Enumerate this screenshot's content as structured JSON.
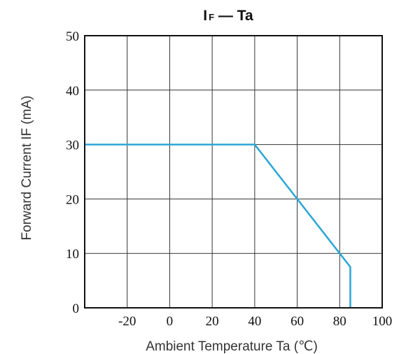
{
  "chart_data": {
    "type": "line",
    "title": {
      "main": "I",
      "subscript": "F",
      "rest": " — Ta"
    },
    "xlabel": "Ambient Temperature  Ta (℃)",
    "ylabel": "Forward Current  IF (mA)",
    "xlim": [
      -40,
      100
    ],
    "ylim": [
      0,
      50
    ],
    "x_ticks": [
      -20,
      0,
      20,
      40,
      60,
      80,
      100
    ],
    "y_ticks": [
      0,
      10,
      20,
      30,
      40,
      50
    ],
    "x_gridlines": [
      -20,
      0,
      20,
      40,
      60,
      80
    ],
    "y_gridlines": [
      10,
      20,
      30,
      40
    ],
    "grid": true,
    "series": [
      {
        "color": "#2aa6d6",
        "points": [
          [
            -40,
            30
          ],
          [
            40,
            30
          ],
          [
            60,
            20
          ],
          [
            80,
            10
          ],
          [
            85,
            7.5
          ],
          [
            85,
            0
          ]
        ]
      }
    ]
  }
}
